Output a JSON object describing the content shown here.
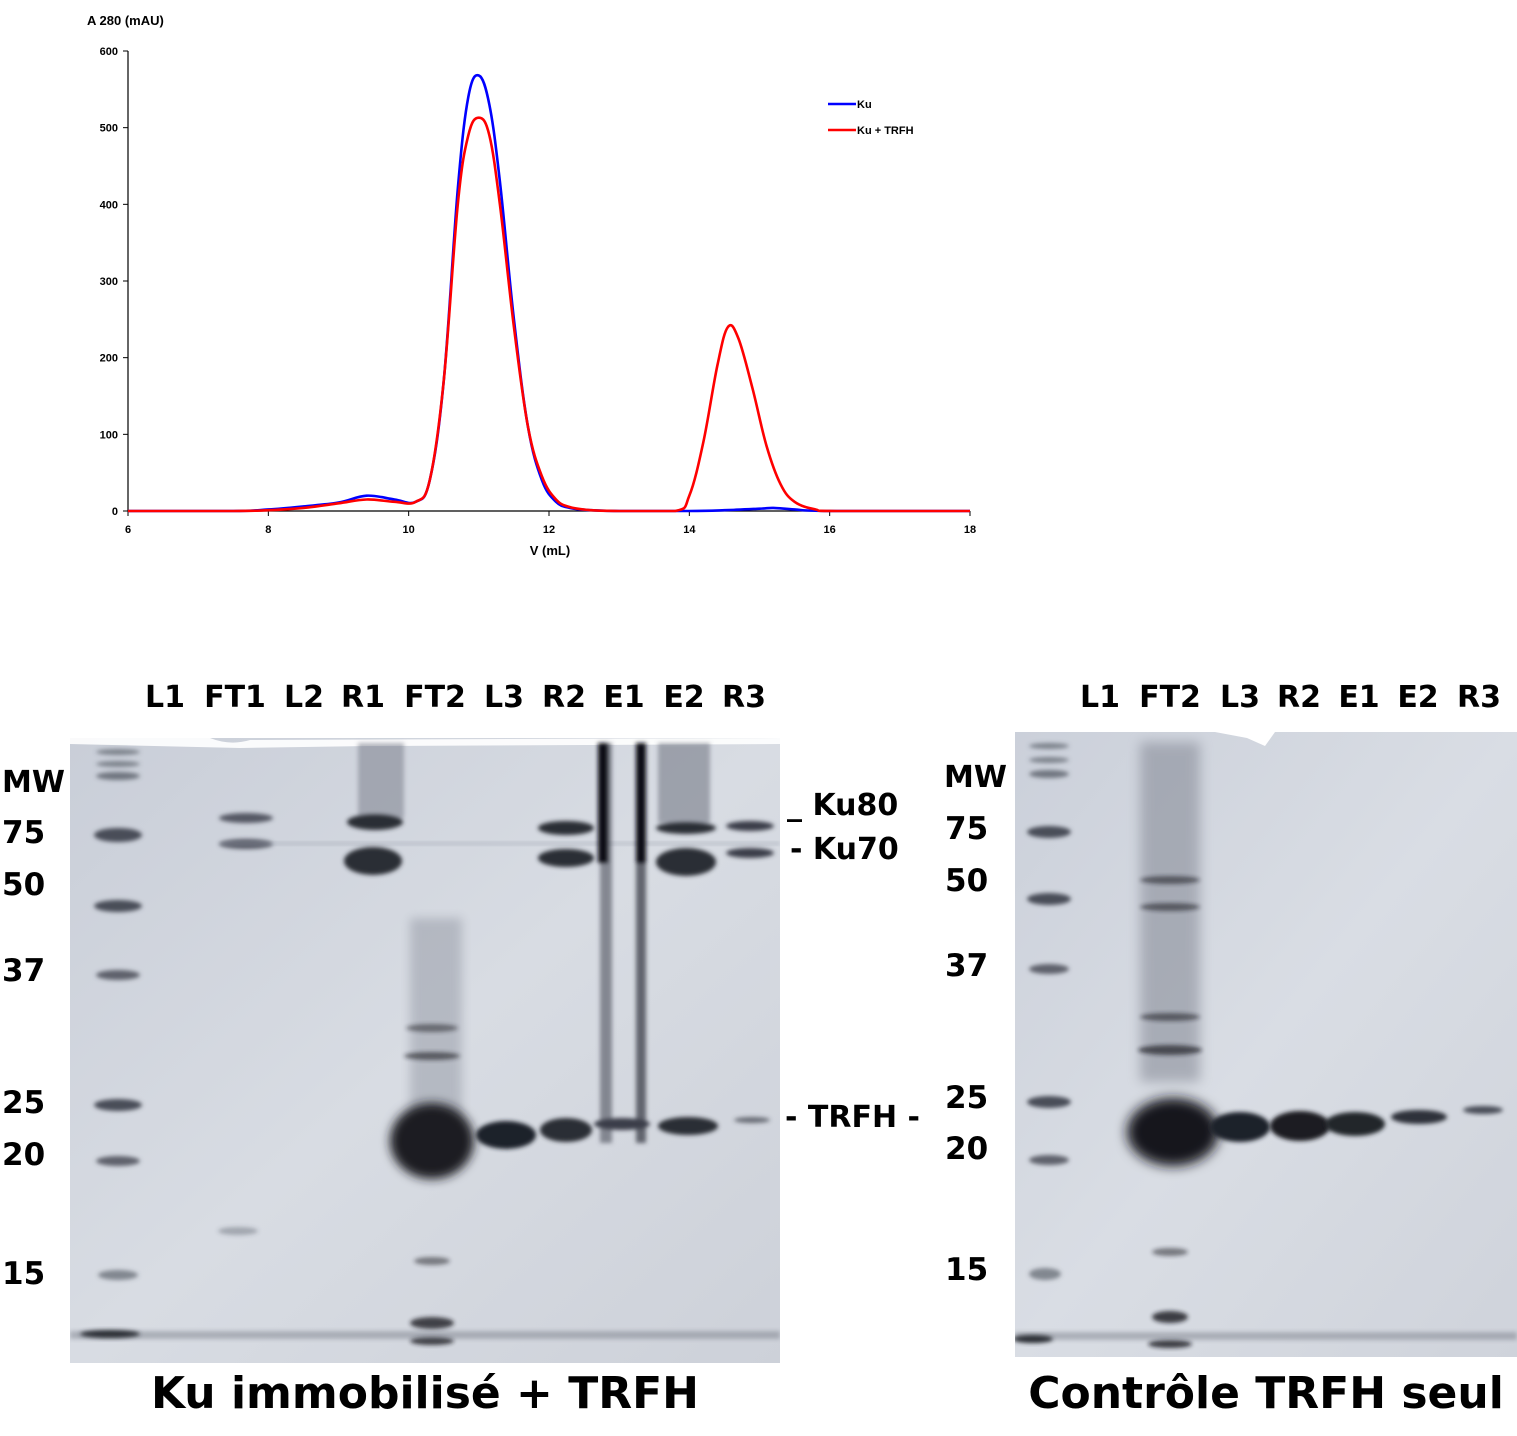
{
  "chart_data": {
    "type": "line",
    "title": "",
    "xlabel": "V (mL)",
    "ylabel": "A 280 (mAU)",
    "xlim": [
      6,
      18
    ],
    "ylim": [
      0,
      600
    ],
    "xticks": [
      6,
      8,
      10,
      12,
      14,
      16,
      18
    ],
    "yticks": [
      0,
      100,
      200,
      300,
      400,
      500,
      600
    ],
    "grid": false,
    "legend_position": "top-right",
    "series": [
      {
        "name": "Ku",
        "color": "#0000ff",
        "x": [
          6,
          7.5,
          8,
          8.5,
          9,
          9.4,
          9.8,
          10.1,
          10.3,
          10.5,
          10.7,
          10.85,
          11.0,
          11.15,
          11.3,
          11.5,
          11.7,
          11.9,
          12.1,
          12.3,
          12.6,
          13,
          14,
          14.5,
          15,
          15.2,
          15.5,
          16,
          18
        ],
        "y": [
          0,
          0,
          2,
          6,
          11,
          20,
          15,
          12,
          40,
          170,
          420,
          540,
          568,
          530,
          430,
          250,
          110,
          40,
          12,
          4,
          1,
          0,
          0,
          1,
          3,
          4,
          2,
          0,
          0
        ]
      },
      {
        "name": "Ku + TRFH",
        "color": "#ff0000",
        "x": [
          6,
          7.5,
          8,
          8.5,
          9,
          9.4,
          9.8,
          10.1,
          10.3,
          10.5,
          10.7,
          10.85,
          11.0,
          11.15,
          11.3,
          11.5,
          11.7,
          11.9,
          12.1,
          12.3,
          12.6,
          13,
          13.8,
          14.0,
          14.2,
          14.4,
          14.55,
          14.7,
          14.9,
          15.1,
          15.3,
          15.5,
          15.8,
          16.1,
          18
        ],
        "y": [
          0,
          0,
          1,
          4,
          10,
          15,
          12,
          12,
          40,
          170,
          400,
          490,
          513,
          490,
          400,
          240,
          110,
          45,
          15,
          5,
          1,
          0,
          0,
          20,
          90,
          190,
          240,
          225,
          160,
          85,
          35,
          12,
          2,
          0,
          0
        ]
      }
    ]
  },
  "gel_left": {
    "mw_header": "MW",
    "mw_markers": [
      "75",
      "50",
      "37",
      "25",
      "20",
      "15"
    ],
    "lanes": [
      "L1",
      "FT1",
      "L2",
      "R1",
      "FT2",
      "L3",
      "R2",
      "E1",
      "E2",
      "R3"
    ],
    "band_labels": [
      "_ Ku80",
      "- Ku70",
      "- TRFH -"
    ],
    "caption": "Ku immobilisé + TRFH"
  },
  "gel_right": {
    "mw_header": "MW",
    "mw_markers": [
      "75",
      "50",
      "37",
      "25",
      "20",
      "15"
    ],
    "lanes": [
      "L1",
      "FT2",
      "L3",
      "R2",
      "E1",
      "E2",
      "R3"
    ],
    "caption": "Contrôle TRFH seul"
  }
}
